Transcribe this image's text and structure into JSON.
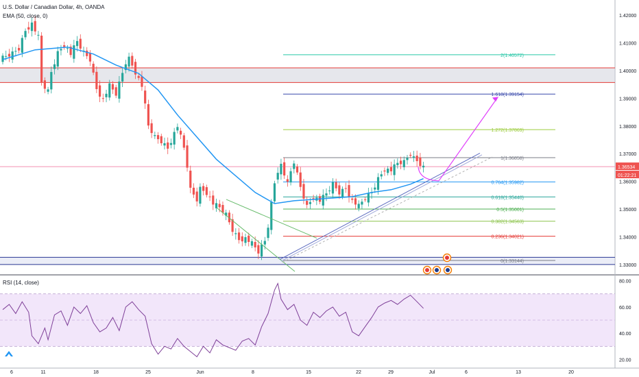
{
  "header": {
    "symbol_title": "U.S. Dollar / Canadian Dollar, 4h, OANDA",
    "ema_label": "EMA (50, close, 0)",
    "rsi_label": "RSI (14, close)"
  },
  "price_badge": {
    "value": "1.36534",
    "countdown": "01:22:21"
  },
  "colors": {
    "up": "#26a69a",
    "down": "#ef5350",
    "ema": "#2196f3",
    "rsi": "#7e3f98",
    "rsi_band": "#e9d6f6",
    "resistance": "#e53935",
    "support": "#283593",
    "arrow": "#e040fb",
    "channel": "#66bb6a"
  },
  "chart_data": [
    {
      "type": "candlestick",
      "title": "U.S. Dollar / Canadian Dollar, 4h, OANDA",
      "x_ticks": [
        "6",
        "11",
        "18",
        "25",
        "Jun",
        "8",
        "15",
        "22",
        "29",
        "Jul",
        "6",
        "13",
        "20"
      ],
      "y_ticks": [
        "1.42000",
        "1.41000",
        "1.40000",
        "1.39000",
        "1.38000",
        "1.37000",
        "1.36000",
        "1.35000",
        "1.34000",
        "1.33000"
      ],
      "ylim": [
        1.3265,
        1.4255
      ],
      "current_price": 1.36534,
      "indicators": [
        {
          "name": "EMA (50, close, 0)"
        }
      ],
      "fibonacci": [
        {
          "ratio": "0",
          "price": "1.33144",
          "label": "0(1.33144)",
          "color": "#787b86"
        },
        {
          "ratio": "0.236",
          "price": "1.34021",
          "label": "0.236(1.34021)",
          "color": "#e53935"
        },
        {
          "ratio": "0.382",
          "price": "1.34563",
          "label": "0.382(1.34563)",
          "color": "#8bc34a"
        },
        {
          "ratio": "0.5",
          "price": "1.35001",
          "label": "0.5(1.35001)",
          "color": "#4caf50"
        },
        {
          "ratio": "0.618",
          "price": "1.35440",
          "label": "0.618(1.35440)",
          "color": "#26a69a"
        },
        {
          "ratio": "0.764",
          "price": "1.35982",
          "label": "0.764(1.35982)",
          "color": "#2196f3"
        },
        {
          "ratio": "1",
          "price": "1.36858",
          "label": "1(1.36858)",
          "color": "#787b86"
        },
        {
          "ratio": "1.272",
          "price": "1.37869",
          "label": "1.272(1.37869)",
          "color": "#9ccc3d"
        },
        {
          "ratio": "1.618",
          "price": "1.39154",
          "label": "1.618(1.39154)",
          "color": "#3949ab"
        },
        {
          "ratio": "2",
          "price": "1.40572",
          "label": "2(1.40572)",
          "color": "#26c6a6"
        }
      ],
      "zones": [
        {
          "name": "resistance",
          "from": 1.3957,
          "to": 1.401
        },
        {
          "name": "support",
          "from": 1.33,
          "to": 1.3326
        }
      ],
      "price_path": [
        [
          0,
          1.4045
        ],
        [
          3,
          1.4062
        ],
        [
          5,
          1.408
        ],
        [
          7,
          1.4145
        ],
        [
          9,
          1.417
        ],
        [
          11,
          1.412
        ],
        [
          12,
          1.3955
        ],
        [
          14,
          1.3925
        ],
        [
          15,
          1.3995
        ],
        [
          17,
          1.4065
        ],
        [
          19,
          1.4095
        ],
        [
          21,
          1.406
        ],
        [
          23,
          1.4105
        ],
        [
          25,
          1.4065
        ],
        [
          27,
          1.404
        ],
        [
          29,
          1.3935
        ],
        [
          31,
          1.3895
        ],
        [
          33,
          1.3945
        ],
        [
          35,
          1.3915
        ],
        [
          38,
          1.403
        ],
        [
          39,
          1.4045
        ],
        [
          41,
          1.3995
        ],
        [
          43,
          1.3945
        ],
        [
          45,
          1.38
        ],
        [
          47,
          1.376
        ],
        [
          49,
          1.3745
        ],
        [
          51,
          1.372
        ],
        [
          53,
          1.3775
        ],
        [
          54,
          1.38
        ],
        [
          56,
          1.372
        ],
        [
          57,
          1.3655
        ],
        [
          58,
          1.357
        ],
        [
          60,
          1.3535
        ],
        [
          61,
          1.3575
        ],
        [
          63,
          1.356
        ],
        [
          65,
          1.352
        ],
        [
          67,
          1.3505
        ],
        [
          69,
          1.348
        ],
        [
          71,
          1.3425
        ],
        [
          73,
          1.339
        ],
        [
          75,
          1.3395
        ],
        [
          77,
          1.3375
        ],
        [
          79,
          1.3345
        ],
        [
          81,
          1.3385
        ],
        [
          82,
          1.344
        ],
        [
          83,
          1.352
        ],
        [
          84,
          1.3595
        ],
        [
          85,
          1.364
        ],
        [
          86,
          1.366
        ],
        [
          88,
          1.359
        ],
        [
          89,
          1.3635
        ],
        [
          90,
          1.367
        ],
        [
          92,
          1.358
        ],
        [
          94,
          1.351
        ],
        [
          96,
          1.3545
        ],
        [
          98,
          1.353
        ],
        [
          100,
          1.3555
        ],
        [
          102,
          1.359
        ],
        [
          104,
          1.356
        ],
        [
          106,
          1.3575
        ],
        [
          108,
          1.353
        ],
        [
          110,
          1.351
        ],
        [
          112,
          1.354
        ],
        [
          114,
          1.356
        ],
        [
          116,
          1.361
        ],
        [
          118,
          1.3645
        ],
        [
          120,
          1.364
        ],
        [
          122,
          1.3665
        ],
        [
          124,
          1.367
        ],
        [
          126,
          1.37
        ],
        [
          127,
          1.3685
        ],
        [
          128,
          1.3675
        ],
        [
          129,
          1.3665
        ],
        [
          130,
          1.3653
        ]
      ],
      "ema_path": [
        [
          0,
          1.404
        ],
        [
          10,
          1.4075
        ],
        [
          20,
          1.4085
        ],
        [
          28,
          1.406
        ],
        [
          35,
          1.402
        ],
        [
          42,
          1.399
        ],
        [
          48,
          1.393
        ],
        [
          54,
          1.384
        ],
        [
          60,
          1.376
        ],
        [
          66,
          1.368
        ],
        [
          72,
          1.362
        ],
        [
          78,
          1.356
        ],
        [
          84,
          1.352
        ],
        [
          90,
          1.353
        ],
        [
          96,
          1.3535
        ],
        [
          102,
          1.354
        ],
        [
          108,
          1.3545
        ],
        [
          114,
          1.356
        ],
        [
          120,
          1.357
        ],
        [
          126,
          1.359
        ],
        [
          130,
          1.361
        ]
      ]
    },
    {
      "type": "line",
      "title": "RSI (14, close)",
      "y_ticks": [
        "80.00",
        "60.00",
        "40.00",
        "20.00"
      ],
      "ylim": [
        16,
        84
      ],
      "band": [
        30,
        70
      ],
      "values": [
        [
          0,
          58
        ],
        [
          2,
          62
        ],
        [
          4,
          55
        ],
        [
          6,
          64
        ],
        [
          8,
          56
        ],
        [
          9,
          38
        ],
        [
          11,
          32
        ],
        [
          13,
          44
        ],
        [
          14,
          35
        ],
        [
          16,
          54
        ],
        [
          18,
          57
        ],
        [
          20,
          46
        ],
        [
          22,
          60
        ],
        [
          24,
          55
        ],
        [
          26,
          61
        ],
        [
          28,
          48
        ],
        [
          30,
          41
        ],
        [
          32,
          44
        ],
        [
          34,
          52
        ],
        [
          36,
          42
        ],
        [
          38,
          60
        ],
        [
          40,
          64
        ],
        [
          42,
          58
        ],
        [
          44,
          53
        ],
        [
          46,
          32
        ],
        [
          48,
          24
        ],
        [
          50,
          30
        ],
        [
          52,
          28
        ],
        [
          54,
          36
        ],
        [
          56,
          30
        ],
        [
          58,
          26
        ],
        [
          60,
          22
        ],
        [
          62,
          30
        ],
        [
          64,
          25
        ],
        [
          66,
          35
        ],
        [
          68,
          31
        ],
        [
          70,
          29
        ],
        [
          72,
          27
        ],
        [
          74,
          34
        ],
        [
          76,
          36
        ],
        [
          78,
          31
        ],
        [
          80,
          45
        ],
        [
          82,
          55
        ],
        [
          84,
          73
        ],
        [
          85,
          78
        ],
        [
          86,
          66
        ],
        [
          88,
          58
        ],
        [
          90,
          62
        ],
        [
          92,
          50
        ],
        [
          94,
          46
        ],
        [
          96,
          56
        ],
        [
          98,
          52
        ],
        [
          100,
          57
        ],
        [
          102,
          60
        ],
        [
          104,
          53
        ],
        [
          106,
          56
        ],
        [
          108,
          41
        ],
        [
          110,
          38
        ],
        [
          112,
          45
        ],
        [
          114,
          52
        ],
        [
          116,
          60
        ],
        [
          118,
          63
        ],
        [
          120,
          65
        ],
        [
          122,
          62
        ],
        [
          124,
          66
        ],
        [
          126,
          69
        ],
        [
          128,
          64
        ],
        [
          130,
          59
        ]
      ]
    }
  ]
}
